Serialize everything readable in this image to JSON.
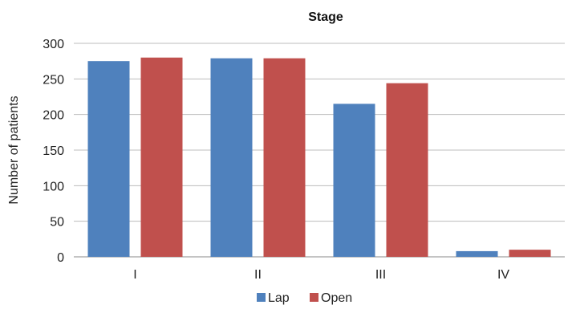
{
  "chart_data": {
    "type": "bar",
    "title": "Stage",
    "xlabel": "",
    "ylabel": "Number of patients",
    "categories": [
      "I",
      "II",
      "III",
      "IV"
    ],
    "series": [
      {
        "name": "Lap",
        "color": "#4F81BD",
        "values": [
          275,
          279,
          215,
          8
        ]
      },
      {
        "name": "Open",
        "color": "#C0504D",
        "values": [
          280,
          279,
          244,
          10
        ]
      }
    ],
    "ylim": [
      0,
      300
    ],
    "yticks": [
      0,
      50,
      100,
      150,
      200,
      250,
      300
    ],
    "grid": true,
    "legend": "bottom-center"
  }
}
